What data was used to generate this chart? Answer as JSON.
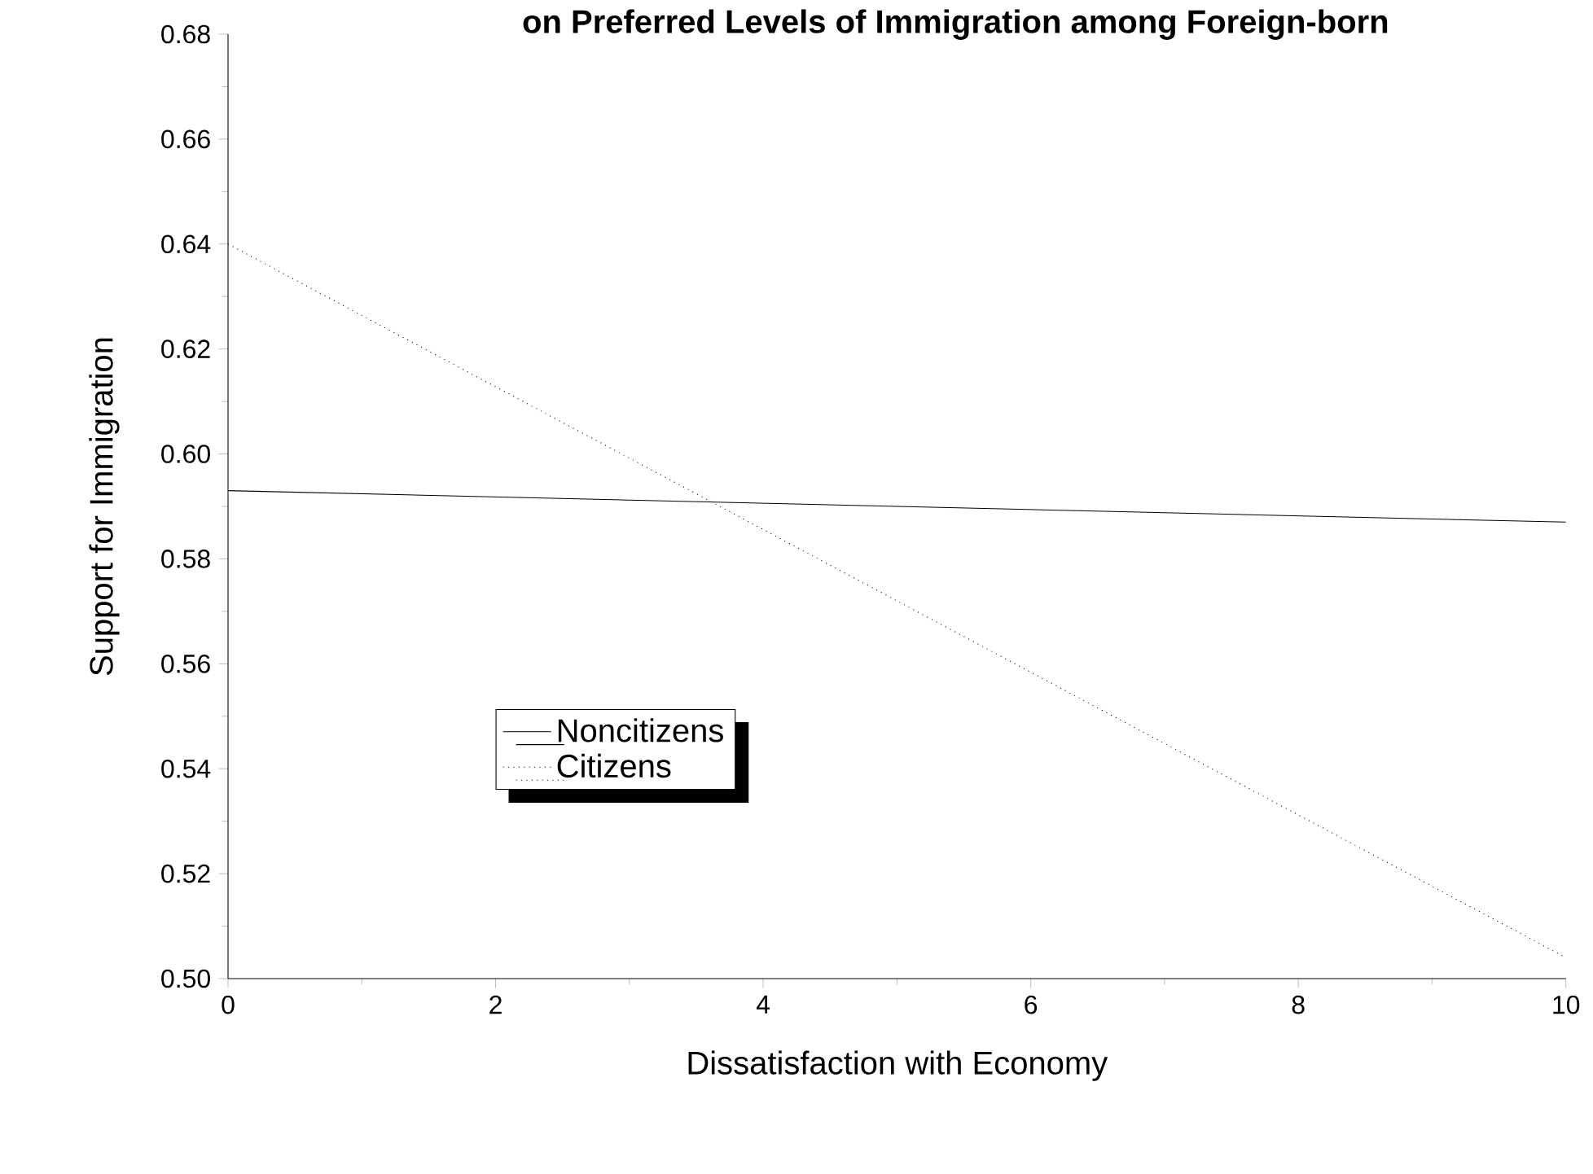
{
  "chart_data": {
    "type": "line",
    "title": "on Preferred Levels of Immigration among Foreign-born",
    "xlabel": "Dissatisfaction with Economy",
    "ylabel": "Support for Immigration",
    "x": [
      0,
      10
    ],
    "series": [
      {
        "name": "Noncitizens",
        "color": "#000000",
        "line_style": "solid",
        "values": [
          0.593,
          0.587
        ]
      },
      {
        "name": "Citizens",
        "color": "#000000",
        "line_style": "dotted",
        "values": [
          0.64,
          0.504
        ]
      }
    ],
    "xlim": [
      0,
      10
    ],
    "xticks": [
      0,
      2,
      4,
      6,
      8,
      10
    ],
    "ylim": [
      0.5,
      0.68
    ],
    "yticks": [
      {
        "value": 0.5,
        "label": "0.50"
      },
      {
        "value": 0.52,
        "label": "0.52"
      },
      {
        "value": 0.54,
        "label": "0.54"
      },
      {
        "value": 0.56,
        "label": "0.56"
      },
      {
        "value": 0.58,
        "label": "0.58"
      },
      {
        "value": 0.6,
        "label": "0.60"
      },
      {
        "value": 0.62,
        "label": "0.62"
      },
      {
        "value": 0.64,
        "label": "0.64"
      },
      {
        "value": 0.66,
        "label": "0.66"
      },
      {
        "value": 0.68,
        "label": "0.68"
      }
    ],
    "legend": "left"
  }
}
